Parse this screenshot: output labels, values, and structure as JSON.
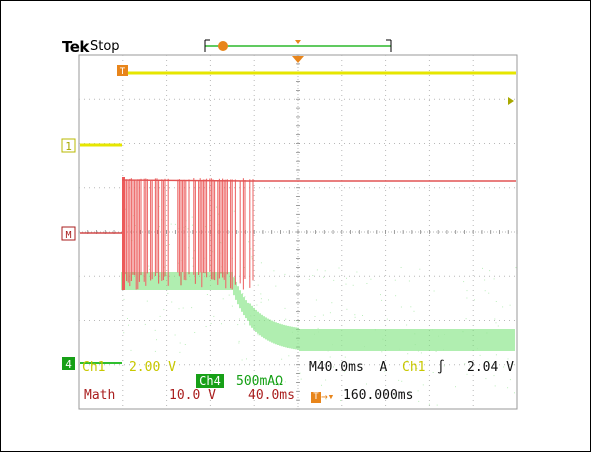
{
  "header": {
    "brand": "Tek",
    "acq_status": "Stop"
  },
  "markers": {
    "ch1": "1",
    "math": "M",
    "ch4": "4",
    "trigger_position": "T"
  },
  "readout": {
    "ch1_scale": "Ch1   2.00 V",
    "ch4_label": "Ch4",
    "ch4_scale": "500mAΩ",
    "timebase": "M40.0ms  A",
    "trigger_channel": "Ch1",
    "trigger_slope": "∫",
    "trigger_level": "2.04 V",
    "math_label": "Math",
    "math_scale": "10.0 V",
    "math_time": "40.0ms",
    "trigger_delay": "160.000ms"
  },
  "colors": {
    "ch1": "#e6e600",
    "math": "#ec5a5a",
    "ch4": "#7de37d",
    "trigger": "#e8851b",
    "grid": "#b8b8b8"
  }
}
